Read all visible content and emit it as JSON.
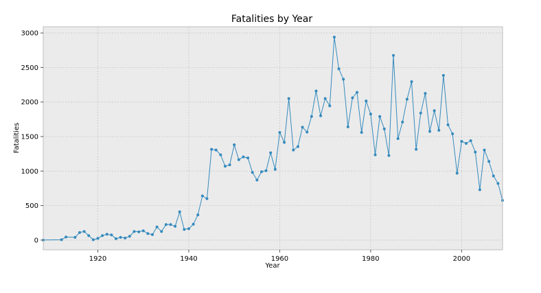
{
  "chart_data": {
    "type": "line",
    "title": "Fatalities by Year",
    "xlabel": "Year",
    "ylabel": "Fatalities",
    "xlim": [
      1908,
      2009
    ],
    "ylim": [
      -140,
      3090
    ],
    "xticks": [
      1920,
      1940,
      1960,
      1980,
      2000
    ],
    "yticks": [
      0,
      500,
      1000,
      1500,
      2000,
      2500,
      3000
    ],
    "grid": true,
    "legend": "none",
    "series": [
      {
        "color": "#348abd",
        "x": [
          1908,
          1912,
          1913,
          1915,
          1916,
          1917,
          1918,
          1919,
          1920,
          1921,
          1922,
          1923,
          1924,
          1925,
          1926,
          1927,
          1928,
          1929,
          1930,
          1931,
          1932,
          1933,
          1934,
          1935,
          1936,
          1937,
          1938,
          1939,
          1940,
          1941,
          1942,
          1943,
          1944,
          1945,
          1946,
          1947,
          1948,
          1949,
          1950,
          1951,
          1952,
          1953,
          1954,
          1955,
          1956,
          1957,
          1958,
          1959,
          1960,
          1961,
          1962,
          1963,
          1964,
          1965,
          1966,
          1967,
          1968,
          1969,
          1970,
          1971,
          1972,
          1973,
          1974,
          1975,
          1976,
          1977,
          1978,
          1979,
          1980,
          1981,
          1982,
          1983,
          1984,
          1985,
          1986,
          1987,
          1988,
          1989,
          1990,
          1991,
          1992,
          1993,
          1994,
          1995,
          1996,
          1997,
          1998,
          1999,
          2000,
          2001,
          2002,
          2003,
          2004,
          2005,
          2006,
          2007,
          2008,
          2009
        ],
        "y": [
          1,
          5,
          45,
          40,
          110,
          125,
          65,
          5,
          25,
          65,
          85,
          75,
          20,
          40,
          30,
          55,
          125,
          120,
          135,
          95,
          80,
          190,
          125,
          225,
          225,
          200,
          410,
          155,
          165,
          230,
          365,
          640,
          600,
          1315,
          1305,
          1235,
          1070,
          1090,
          1380,
          1165,
          1205,
          1190,
          980,
          870,
          990,
          1005,
          1265,
          1025,
          1560,
          1415,
          2050,
          1305,
          1355,
          1635,
          1565,
          1790,
          2160,
          1800,
          2050,
          1945,
          2940,
          2480,
          2330,
          1640,
          2060,
          2140,
          1560,
          2015,
          1825,
          1235,
          1790,
          1610,
          1225,
          2675,
          1470,
          1710,
          2040,
          2295,
          1315,
          1840,
          2125,
          1575,
          1875,
          1590,
          2385,
          1670,
          1540,
          970,
          1430,
          1400,
          1440,
          1275,
          730,
          1305,
          1140,
          930,
          820,
          575
        ]
      }
    ]
  }
}
